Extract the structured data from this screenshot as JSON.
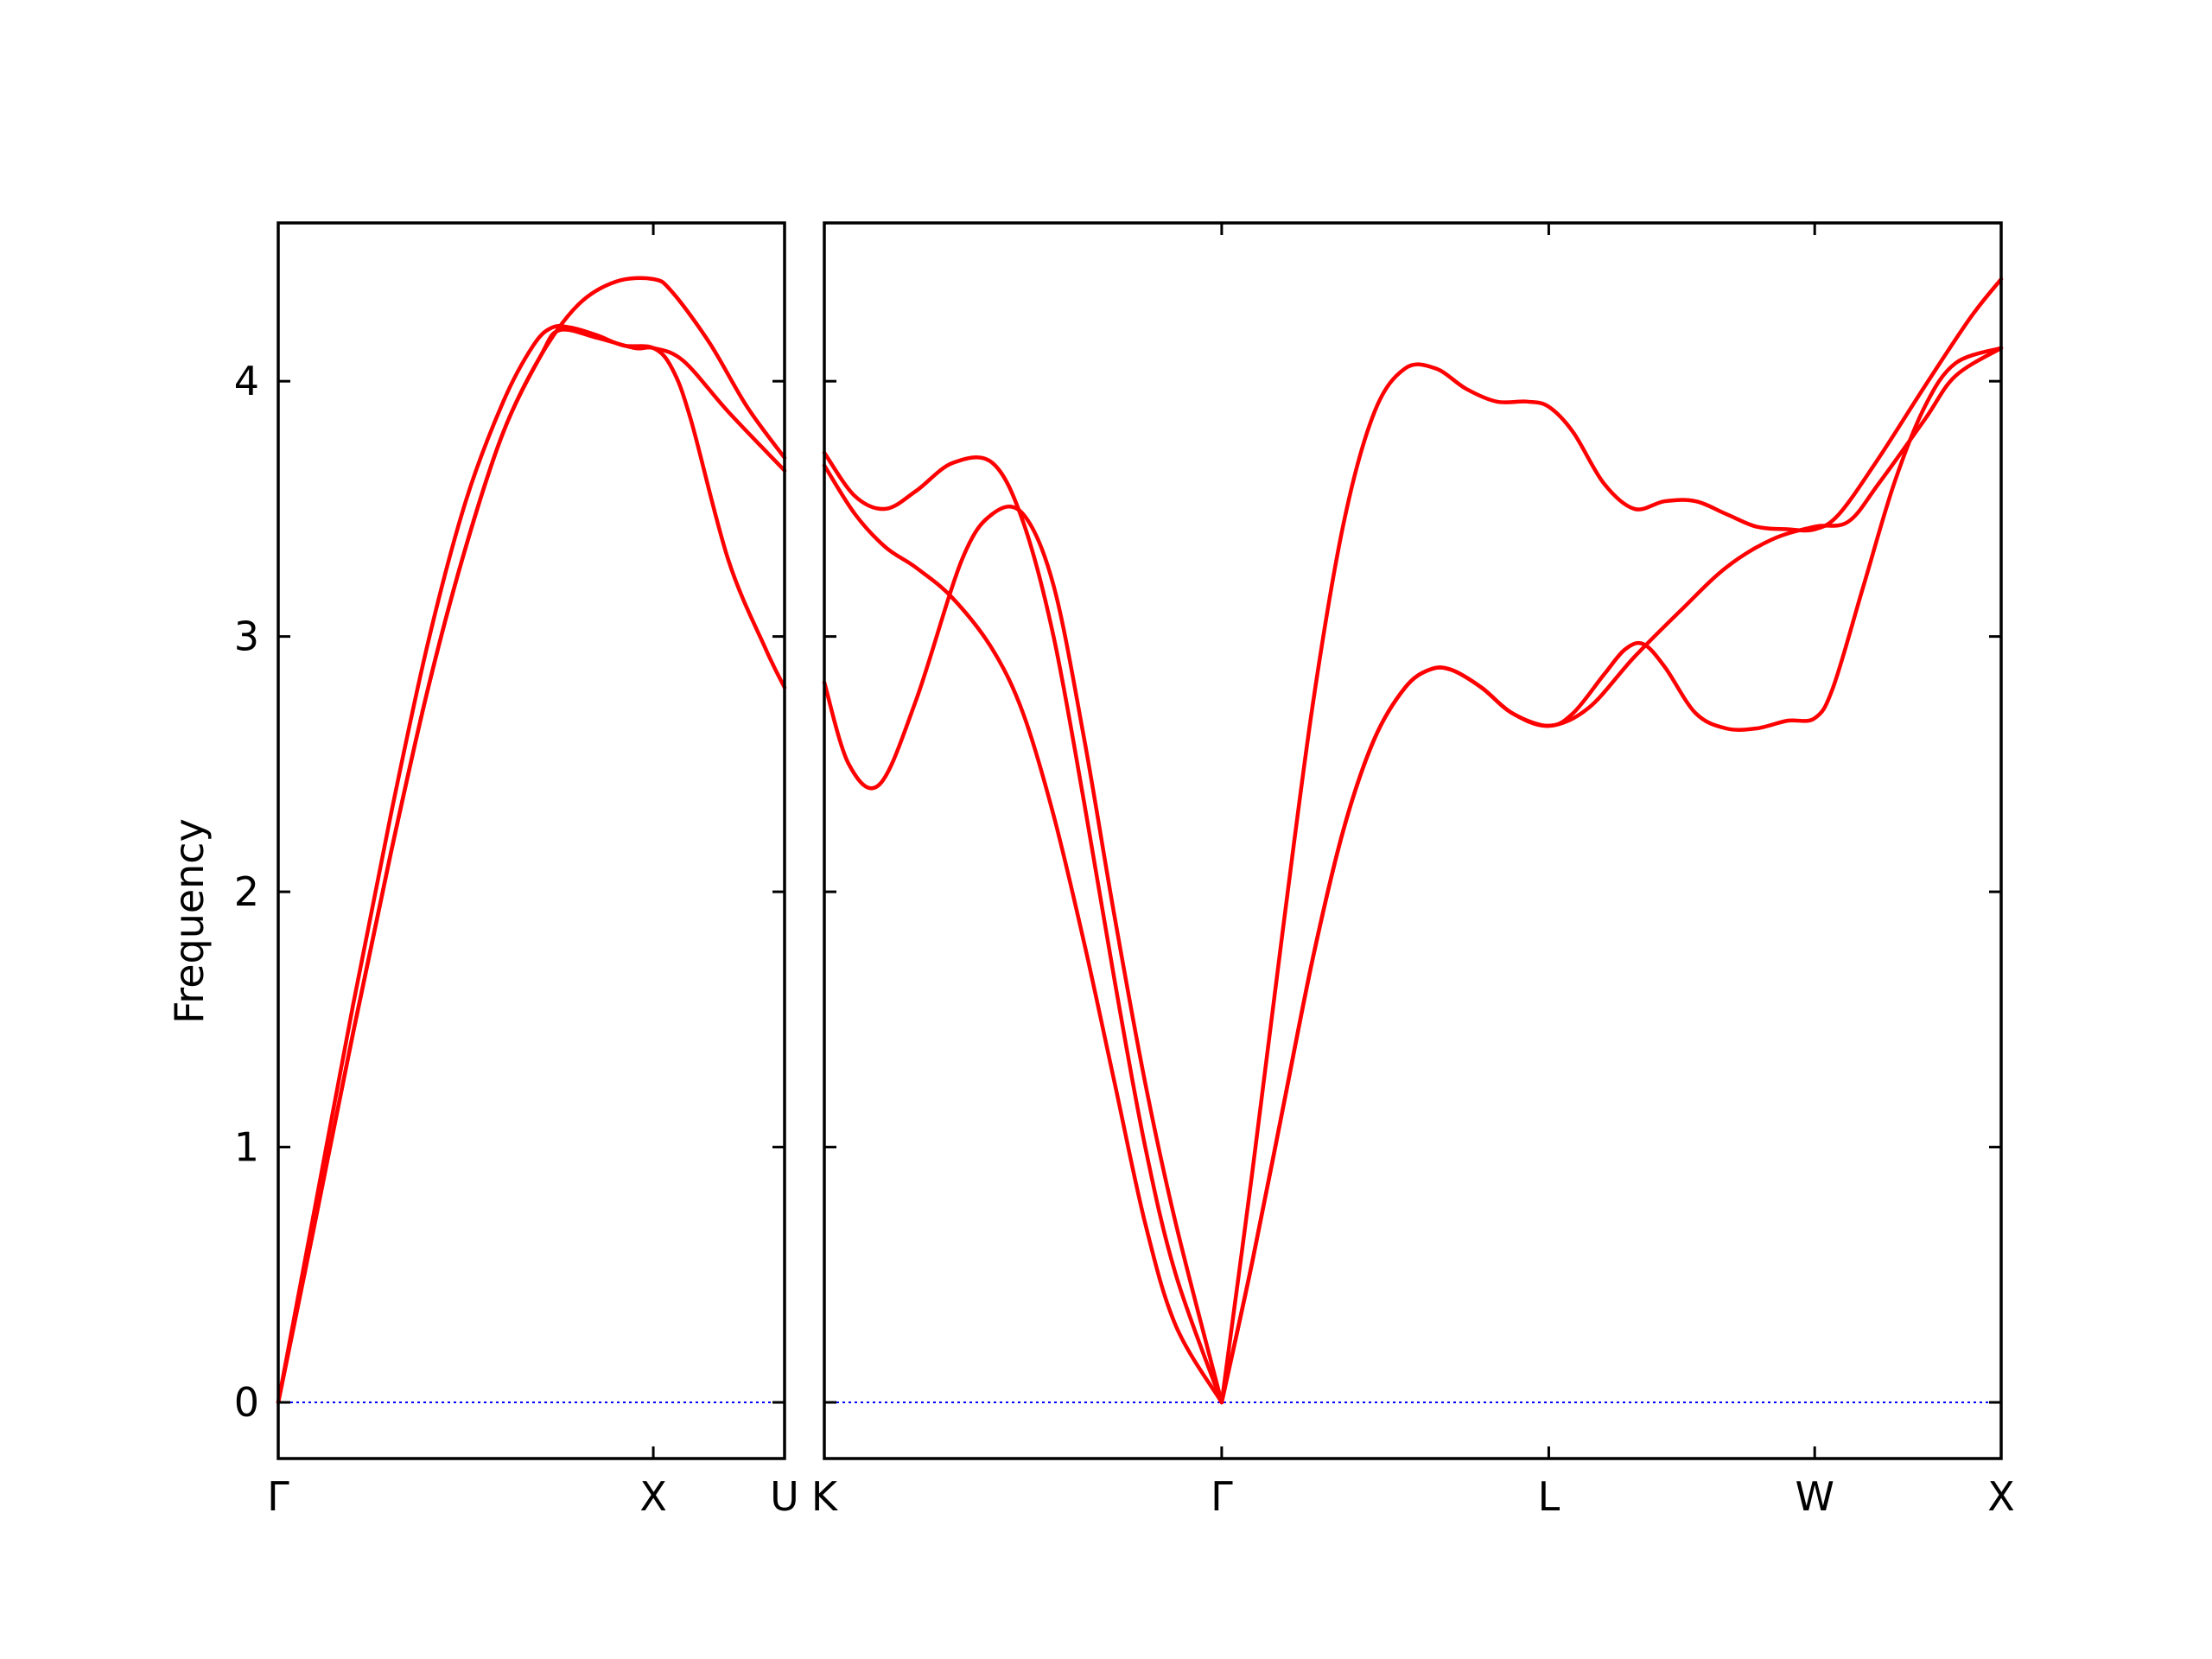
{
  "chart_data": {
    "type": "line",
    "ylabel": "Frequency",
    "ylim": [
      -0.22,
      4.62
    ],
    "yticks": [
      0,
      1,
      2,
      3,
      4
    ],
    "colors": {
      "band": "#ff0000",
      "zero_line": "#0000ff",
      "frame": "#000000"
    },
    "grid": false,
    "panels": [
      {
        "name": "Γ-X-U",
        "xlim": [
          0,
          1.35
        ],
        "xticks": [
          {
            "x": 0,
            "label": "Γ"
          },
          {
            "x": 1.0,
            "label": "X"
          },
          {
            "x": 1.35,
            "label": "U"
          }
        ],
        "series": [
          {
            "values": [
              [
                0,
                0
              ],
              [
                0.1,
                0.78
              ],
              [
                0.2,
                1.56
              ],
              [
                0.3,
                2.3
              ],
              [
                0.4,
                2.98
              ],
              [
                0.5,
                3.53
              ],
              [
                0.6,
                3.92
              ],
              [
                0.68,
                4.14
              ],
              [
                0.73,
                4.21
              ],
              [
                0.78,
                4.21
              ],
              [
                0.85,
                4.18
              ],
              [
                0.92,
                4.14
              ],
              [
                1.0,
                4.13
              ],
              [
                1.05,
                4.05
              ],
              [
                1.1,
                3.85
              ],
              [
                1.2,
                3.3
              ],
              [
                1.3,
                2.95
              ],
              [
                1.35,
                2.8
              ]
            ]
          },
          {
            "values": [
              [
                0,
                0
              ],
              [
                0.1,
                0.72
              ],
              [
                0.2,
                1.45
              ],
              [
                0.3,
                2.15
              ],
              [
                0.4,
                2.8
              ],
              [
                0.5,
                3.35
              ],
              [
                0.6,
                3.8
              ],
              [
                0.7,
                4.1
              ],
              [
                0.8,
                4.3
              ],
              [
                0.9,
                4.39
              ],
              [
                1.0,
                4.4
              ],
              [
                1.05,
                4.35
              ],
              [
                1.15,
                4.15
              ],
              [
                1.25,
                3.9
              ],
              [
                1.35,
                3.7
              ]
            ]
          },
          {
            "values": [
              [
                0,
                0
              ],
              [
                0.1,
                0.72
              ],
              [
                0.2,
                1.45
              ],
              [
                0.3,
                2.15
              ],
              [
                0.4,
                2.8
              ],
              [
                0.5,
                3.35
              ],
              [
                0.6,
                3.8
              ],
              [
                0.7,
                4.1
              ],
              [
                0.75,
                4.2
              ],
              [
                0.85,
                4.17
              ],
              [
                0.95,
                4.13
              ],
              [
                1.0,
                4.13
              ],
              [
                1.08,
                4.08
              ],
              [
                1.2,
                3.88
              ],
              [
                1.35,
                3.65
              ]
            ]
          }
        ]
      },
      {
        "name": "K-Γ-L-W-X",
        "xlim": [
          0,
          3.85
        ],
        "xticks": [
          {
            "x": 0,
            "label": "K"
          },
          {
            "x": 1.3,
            "label": "Γ"
          },
          {
            "x": 2.37,
            "label": "L"
          },
          {
            "x": 3.24,
            "label": "W"
          },
          {
            "x": 3.85,
            "label": "X"
          }
        ],
        "series": [
          {
            "values": [
              [
                0,
                2.82
              ],
              [
                0.08,
                2.5
              ],
              [
                0.18,
                2.42
              ],
              [
                0.3,
                2.75
              ],
              [
                0.45,
                3.3
              ],
              [
                0.55,
                3.48
              ],
              [
                0.65,
                3.48
              ],
              [
                0.75,
                3.2
              ],
              [
                0.85,
                2.6
              ],
              [
                0.95,
                1.9
              ],
              [
                1.05,
                1.25
              ],
              [
                1.15,
                0.7
              ],
              [
                1.3,
                0
              ]
            ]
          },
          {
            "values": [
              [
                0,
                3.72
              ],
              [
                0.1,
                3.55
              ],
              [
                0.2,
                3.5
              ],
              [
                0.3,
                3.57
              ],
              [
                0.42,
                3.68
              ],
              [
                0.55,
                3.68
              ],
              [
                0.65,
                3.45
              ],
              [
                0.75,
                3.0
              ],
              [
                0.85,
                2.35
              ],
              [
                0.95,
                1.65
              ],
              [
                1.05,
                1.0
              ],
              [
                1.15,
                0.5
              ],
              [
                1.3,
                0
              ]
            ]
          },
          {
            "values": [
              [
                0,
                3.67
              ],
              [
                0.1,
                3.48
              ],
              [
                0.2,
                3.35
              ],
              [
                0.3,
                3.27
              ],
              [
                0.42,
                3.15
              ],
              [
                0.55,
                2.95
              ],
              [
                0.65,
                2.7
              ],
              [
                0.75,
                2.3
              ],
              [
                0.85,
                1.8
              ],
              [
                0.95,
                1.25
              ],
              [
                1.05,
                0.7
              ],
              [
                1.15,
                0.3
              ],
              [
                1.3,
                0
              ]
            ]
          },
          {
            "values": [
              [
                1.3,
                0
              ],
              [
                1.4,
                0.9
              ],
              [
                1.5,
                1.85
              ],
              [
                1.6,
                2.75
              ],
              [
                1.7,
                3.45
              ],
              [
                1.8,
                3.88
              ],
              [
                1.9,
                4.05
              ],
              [
                2.0,
                4.05
              ],
              [
                2.1,
                3.97
              ],
              [
                2.2,
                3.92
              ],
              [
                2.3,
                3.92
              ],
              [
                2.37,
                3.9
              ],
              [
                2.45,
                3.8
              ],
              [
                2.55,
                3.6
              ],
              [
                2.65,
                3.5
              ],
              [
                2.75,
                3.53
              ],
              [
                2.85,
                3.53
              ],
              [
                2.95,
                3.48
              ],
              [
                3.05,
                3.43
              ],
              [
                3.15,
                3.42
              ],
              [
                3.24,
                3.42
              ],
              [
                3.32,
                3.48
              ],
              [
                3.45,
                3.7
              ],
              [
                3.6,
                3.98
              ],
              [
                3.75,
                4.25
              ],
              [
                3.85,
                4.4
              ]
            ]
          },
          {
            "values": [
              [
                1.3,
                0
              ],
              [
                1.4,
                0.55
              ],
              [
                1.5,
                1.15
              ],
              [
                1.6,
                1.75
              ],
              [
                1.7,
                2.25
              ],
              [
                1.8,
                2.6
              ],
              [
                1.9,
                2.8
              ],
              [
                1.98,
                2.87
              ],
              [
                2.05,
                2.87
              ],
              [
                2.15,
                2.8
              ],
              [
                2.25,
                2.7
              ],
              [
                2.37,
                2.65
              ],
              [
                2.45,
                2.7
              ],
              [
                2.55,
                2.85
              ],
              [
                2.62,
                2.95
              ],
              [
                2.68,
                2.97
              ],
              [
                2.75,
                2.88
              ],
              [
                2.85,
                2.7
              ],
              [
                2.95,
                2.64
              ],
              [
                3.05,
                2.64
              ],
              [
                3.15,
                2.67
              ],
              [
                3.24,
                2.68
              ],
              [
                3.3,
                2.8
              ],
              [
                3.4,
                3.2
              ],
              [
                3.5,
                3.6
              ],
              [
                3.6,
                3.9
              ],
              [
                3.7,
                4.07
              ],
              [
                3.85,
                4.13
              ]
            ]
          },
          {
            "values": [
              [
                1.3,
                0
              ],
              [
                1.4,
                0.55
              ],
              [
                1.5,
                1.15
              ],
              [
                1.6,
                1.75
              ],
              [
                1.7,
                2.25
              ],
              [
                1.8,
                2.6
              ],
              [
                1.9,
                2.8
              ],
              [
                1.98,
                2.87
              ],
              [
                2.05,
                2.87
              ],
              [
                2.15,
                2.8
              ],
              [
                2.25,
                2.7
              ],
              [
                2.37,
                2.65
              ],
              [
                2.5,
                2.72
              ],
              [
                2.65,
                2.92
              ],
              [
                2.8,
                3.1
              ],
              [
                2.95,
                3.27
              ],
              [
                3.1,
                3.38
              ],
              [
                3.24,
                3.43
              ],
              [
                3.35,
                3.45
              ],
              [
                3.45,
                3.6
              ],
              [
                3.6,
                3.85
              ],
              [
                3.7,
                4.02
              ],
              [
                3.85,
                4.13
              ]
            ]
          }
        ]
      }
    ]
  }
}
